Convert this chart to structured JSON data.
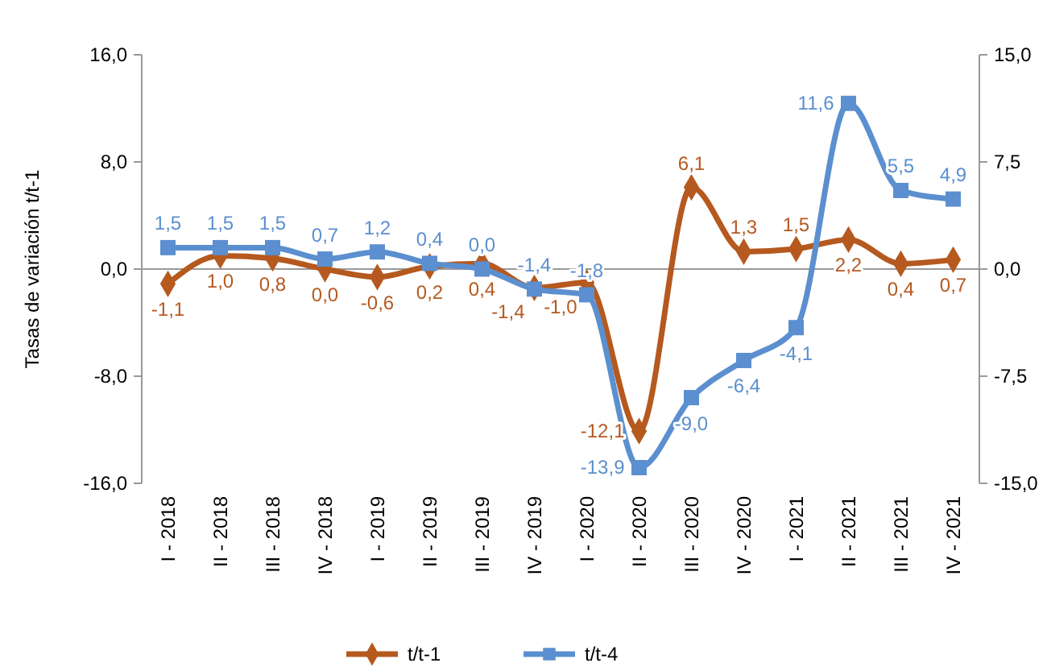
{
  "chart_data": {
    "type": "line",
    "ylabel": "Tasas de variación t/t-1",
    "categories": [
      "I - 2018",
      "II - 2018",
      "III - 2018",
      "IV - 2018",
      "I - 2019",
      "II - 2019",
      "III - 2019",
      "IV - 2019",
      "I - 2020",
      "II - 2020",
      "III - 2020",
      "IV - 2020",
      "I - 2021",
      "II - 2021",
      "III - 2021",
      "IV - 2021"
    ],
    "series": [
      {
        "name": "t/t-1",
        "color": "#b5591f",
        "marker": "diamond",
        "values": [
          -1.1,
          1.0,
          0.8,
          0.0,
          -0.6,
          0.2,
          0.4,
          -1.4,
          -1.0,
          -12.1,
          6.1,
          1.3,
          1.5,
          2.2,
          0.4,
          0.7
        ],
        "value_labels": [
          "-1,1",
          "1,0",
          "0,8",
          "0,0",
          "-0,6",
          "0,2",
          "0,4",
          "-1,4",
          "-1,0",
          "-12,1",
          "6,1",
          "1,3",
          "1,5",
          "2,2",
          "0,4",
          "0,7"
        ]
      },
      {
        "name": "t/t-4",
        "color": "#5b8fcf",
        "marker": "square",
        "axis": "y2",
        "values": [
          1.5,
          1.5,
          1.5,
          0.7,
          1.2,
          0.4,
          0.0,
          -1.4,
          -1.8,
          -13.9,
          -9.0,
          -6.4,
          -4.1,
          11.6,
          5.5,
          4.9
        ],
        "value_labels": [
          "1,5",
          "1,5",
          "1,5",
          "0,7",
          "1,2",
          "0,4",
          "0,0",
          "-1,4",
          "-1,8",
          "-13,9",
          "-9,0",
          "-6,4",
          "-4,1",
          "11,6",
          "5,5",
          "4,9"
        ]
      }
    ],
    "ylim": [
      -16,
      16
    ],
    "yticks": [
      {
        "value": -16,
        "label": "-16,0"
      },
      {
        "value": -8,
        "label": "-8,0"
      },
      {
        "value": 0,
        "label": "0,0"
      },
      {
        "value": 8,
        "label": "8,0"
      },
      {
        "value": 16,
        "label": "16,0"
      }
    ],
    "y2lim": [
      -15,
      15
    ],
    "y2ticks": [
      {
        "value": -15,
        "label": "-15,0"
      },
      {
        "value": -7.5,
        "label": "-7,5"
      },
      {
        "value": 0,
        "label": "0,0"
      },
      {
        "value": 7.5,
        "label": "7,5"
      },
      {
        "value": 15,
        "label": "15,0"
      }
    ],
    "ref_lines": [
      {
        "axis": "y",
        "value": 0
      }
    ],
    "legend": "bottom",
    "grid": false
  }
}
